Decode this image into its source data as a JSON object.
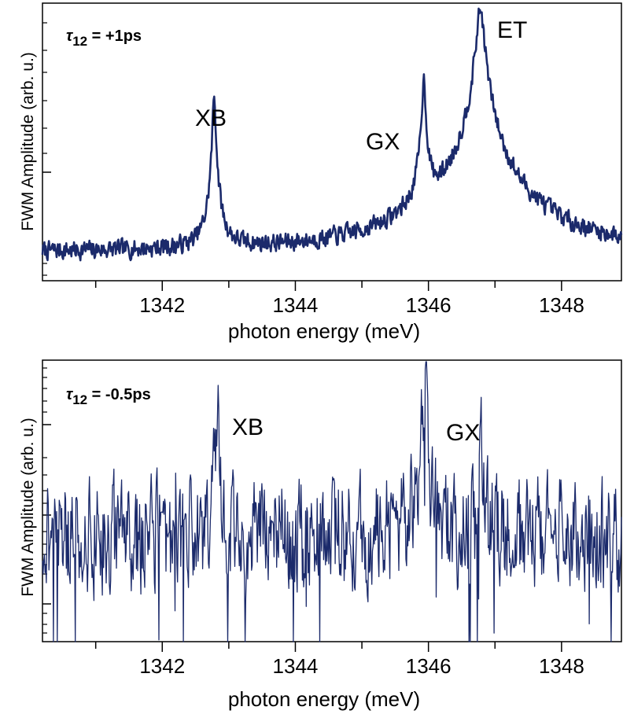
{
  "colors": {
    "trace": "#1b2a6b",
    "axis": "#000000"
  },
  "chart_data": [
    {
      "type": "line",
      "panel": "top",
      "yscale": "log",
      "xlabel": "photon energy (meV)",
      "ylabel": "FWM Amplitude (arb. u.)",
      "xlim": [
        1340.2,
        1348.9
      ],
      "xticks_labeled": [
        "1342",
        "1344",
        "1346",
        "1348"
      ],
      "tau_label": {
        "sym": "τ",
        "sub": "12",
        "rest": " = +1ps"
      },
      "peak_labels": [
        {
          "text": "XB",
          "x": 1342.78
        },
        {
          "text": "GX",
          "x": 1345.92
        },
        {
          "text": "ET",
          "x": 1346.78
        }
      ],
      "baseline": 0.1,
      "noise": 0.35,
      "peaks": [
        {
          "x": 1342.78,
          "height": 9.0,
          "width": 0.02
        },
        {
          "x": 1345.93,
          "height": 14.0,
          "width": 0.025
        },
        {
          "x": 1346.78,
          "height": 110.0,
          "width": 0.05
        }
      ]
    },
    {
      "type": "line",
      "panel": "bottom",
      "yscale": "log",
      "xlabel": "photon energy (meV)",
      "ylabel": "FWM Amplitude (arb. u.)",
      "xlim": [
        1340.2,
        1348.9
      ],
      "xticks_labeled": [
        "1342",
        "1344",
        "1346",
        "1348"
      ],
      "tau_label": {
        "sym": "τ",
        "sub": "12",
        "rest": " = -0.5ps"
      },
      "peak_labels": [
        {
          "text": "XB",
          "x": 1342.82
        },
        {
          "text": "GX",
          "x": 1345.95
        }
      ],
      "baseline": 0.1,
      "noise": 1.2,
      "peaks": [
        {
          "x": 1342.82,
          "height": 1.0,
          "width": 0.03
        },
        {
          "x": 1345.95,
          "height": 2.5,
          "width": 0.03
        },
        {
          "x": 1346.8,
          "height": 0.35,
          "width": 0.03
        }
      ]
    }
  ]
}
